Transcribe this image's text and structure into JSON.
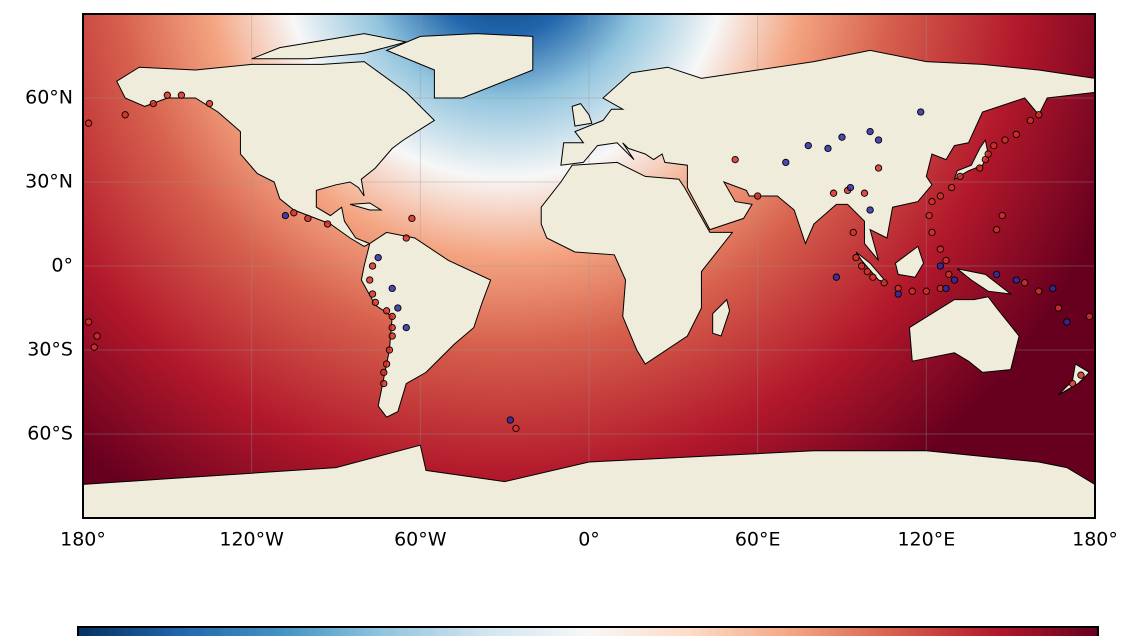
{
  "chart_data": {
    "type": "scatter",
    "xlim": [
      -180,
      180
    ],
    "ylim": [
      -90,
      90
    ],
    "xticks": [
      {
        "value": -180,
        "label": "180°"
      },
      {
        "value": -120,
        "label": "120°W"
      },
      {
        "value": -60,
        "label": "60°W"
      },
      {
        "value": 0,
        "label": "0°"
      },
      {
        "value": 60,
        "label": "60°E"
      },
      {
        "value": 120,
        "label": "120°E"
      },
      {
        "value": 180,
        "label": "180°"
      }
    ],
    "yticks": [
      {
        "value": -60,
        "label": "60°S"
      },
      {
        "value": -30,
        "label": "30°S"
      },
      {
        "value": 0,
        "label": "0°"
      },
      {
        "value": 30,
        "label": "30°N"
      },
      {
        "value": 60,
        "label": "60°N"
      }
    ],
    "grid": true,
    "series": [
      {
        "color": "#d73027",
        "x": [
          -178,
          -165,
          -155,
          -150,
          -145,
          -135,
          -105,
          -100,
          -93,
          -63,
          -65,
          -77,
          -78,
          -77,
          -76,
          -72,
          -70,
          -70,
          -70,
          -71,
          -72,
          -73,
          -73,
          -26,
          52,
          60,
          87,
          92,
          98,
          103,
          95,
          97,
          99,
          101,
          105,
          110,
          115,
          120,
          125,
          128,
          127,
          125,
          122,
          121,
          122,
          125,
          129,
          132,
          139,
          141,
          142,
          144,
          148,
          152,
          157,
          160,
          147,
          145,
          155,
          160,
          167,
          178,
          -178,
          -175,
          -176,
          175,
          172,
          94
        ],
        "values": [
          51,
          54,
          58,
          61,
          61,
          58,
          19,
          17,
          15,
          17,
          10,
          0,
          -5,
          -10,
          -13,
          -16,
          -18,
          -22,
          -25,
          -30,
          -35,
          -38,
          -42,
          -58,
          38,
          25,
          26,
          27,
          26,
          35,
          3,
          0,
          -2,
          -4,
          -6,
          -8,
          -9,
          -9,
          -8,
          -3,
          2,
          6,
          12,
          18,
          23,
          25,
          28,
          32,
          35,
          38,
          40,
          43,
          45,
          47,
          52,
          54,
          18,
          13,
          -6,
          -9,
          -15,
          -18,
          -20,
          -25,
          -29,
          -39,
          -42,
          12
        ]
      },
      {
        "color": "#2c2ca8",
        "x": [
          -108,
          -75,
          -68,
          -65,
          -70,
          -28,
          78,
          85,
          90,
          100,
          103,
          118,
          70,
          93,
          100,
          125,
          130,
          145,
          152,
          170,
          165,
          127,
          110,
          88
        ],
        "values": [
          18,
          3,
          -15,
          -22,
          -8,
          -55,
          43,
          42,
          46,
          48,
          45,
          55,
          37,
          28,
          20,
          0,
          -5,
          -3,
          -5,
          -20,
          -8,
          -8,
          -10,
          -4
        ]
      }
    ],
    "colorbar": {
      "colors": [
        "#053061",
        "#2166ac",
        "#4393c3",
        "#92c5de",
        "#d1e5f0",
        "#f7f7f7",
        "#fddbc7",
        "#f4a582",
        "#d6604d",
        "#b2182b",
        "#67001f"
      ]
    }
  }
}
